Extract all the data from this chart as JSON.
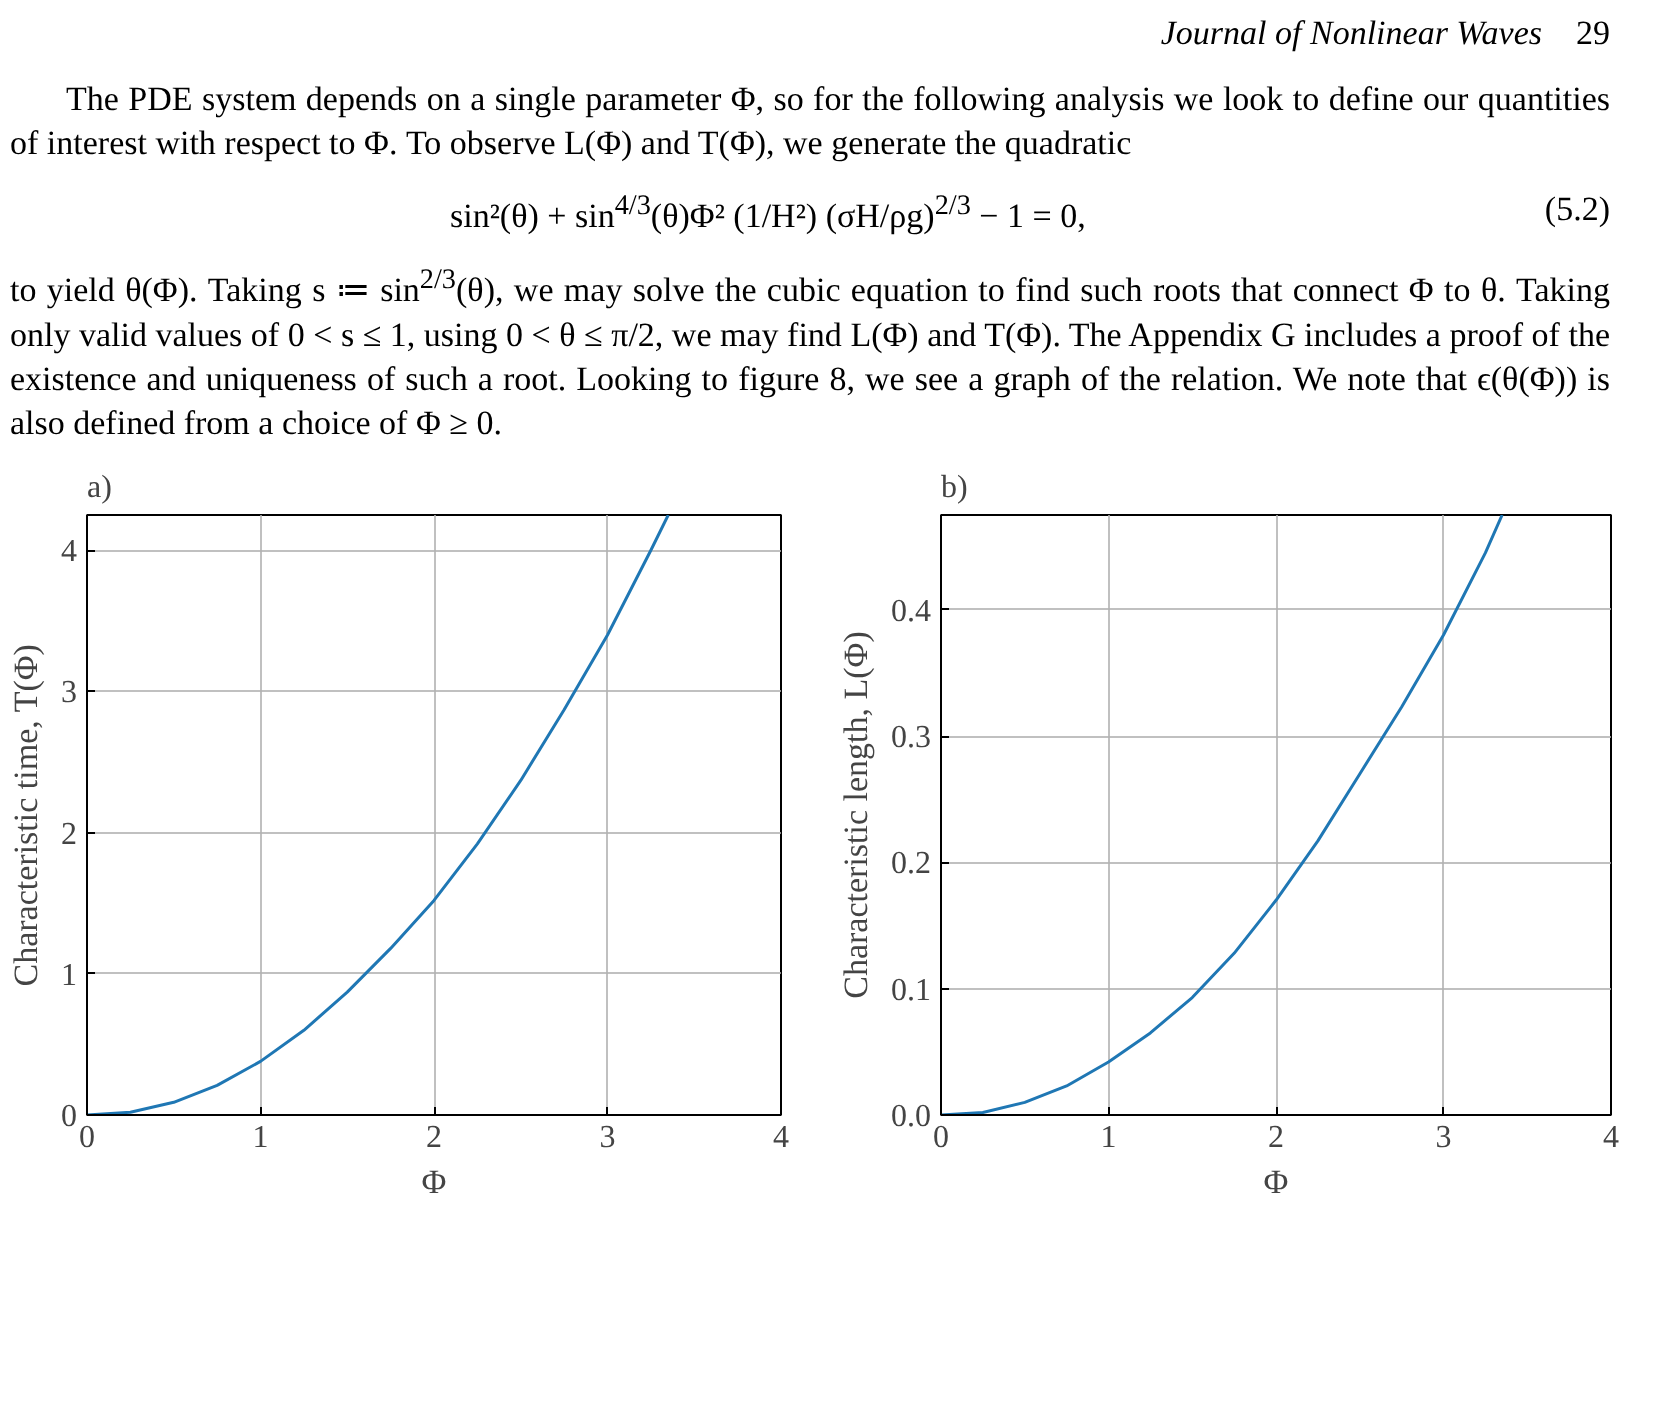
{
  "chart_data": [
    {
      "type": "other",
      "annotations": [
        "Journal of Nonlinear Waves",
        "29",
        "The PDE system depends on a single parameter Φ, so for the following analysis we look to define our quantities of interest with respect to Φ. To observe L(Φ) and T(Φ), we generate the quadratic",
        "sin²(θ) + sin$^{4/3}$(θ)Φ² (1/H²) (σH/ρg)$^{2/3}$ − 1 = 0,",
        "(5.2)",
        "to yield θ(Φ). Taking s ≔ sin$^{2/3}$(θ), we may solve the cubic equation to find such roots that connect Φ to θ. Taking only valid values of 0 < s ≤ 1, using 0 < θ ≤ π/2, we may find L(Φ) and T(Φ). The Appendix G includes a proof of the existence and uniqueness of such a root. Looking to figure 8, we see a graph of the relation. We note that ϵ(θ(Φ)) is also defined from a choice of Φ ≥ 0."
      ]
    },
    {
      "type": "line",
      "title": "a)",
      "xlabel": "Φ",
      "ylabel": "Characteristic time, T(Φ)",
      "x": [
        0,
        0.25,
        0.5,
        0.75,
        1,
        1.25,
        1.5,
        1.75,
        2,
        2.25,
        2.5,
        2.75,
        3,
        3.25,
        3.35
      ],
      "series": [
        {
          "color": "#1f77b4",
          "values": [
            0,
            0.02,
            0.09,
            0.21,
            0.38,
            0.6,
            0.87,
            1.18,
            1.52,
            1.92,
            2.37,
            2.87,
            3.4,
            4.0,
            4.25
          ]
        }
      ],
      "xlim": [
        0,
        4
      ],
      "ylim": [
        0,
        4.25
      ],
      "xticks": [
        0,
        1,
        2,
        3,
        4
      ],
      "yticks": [
        0,
        1,
        2,
        3,
        4
      ],
      "grid": true,
      "marker": "none",
      "line_style": "solid"
    },
    {
      "type": "line",
      "title": "b)",
      "xlabel": "Φ",
      "ylabel": "Characteristic length, L(Φ)",
      "x": [
        0,
        0.25,
        0.5,
        0.75,
        1,
        1.25,
        1.5,
        1.75,
        2,
        2.25,
        2.5,
        2.75,
        3,
        3.25,
        3.35
      ],
      "series": [
        {
          "color": "#1f77b4",
          "values": [
            0,
            0.002,
            0.01,
            0.023,
            0.042,
            0.065,
            0.093,
            0.128,
            0.17,
            0.217,
            0.27,
            0.323,
            0.38,
            0.445,
            0.475
          ]
        }
      ],
      "xlim": [
        0,
        4
      ],
      "ylim": [
        0,
        0.475
      ],
      "xticks": [
        0,
        1,
        2,
        3,
        4
      ],
      "yticks": [
        {
          "value": 0,
          "label": "0.0"
        },
        0.1,
        0.2,
        0.3,
        0.4
      ],
      "grid": true,
      "marker": "none",
      "line_style": "solid"
    }
  ]
}
